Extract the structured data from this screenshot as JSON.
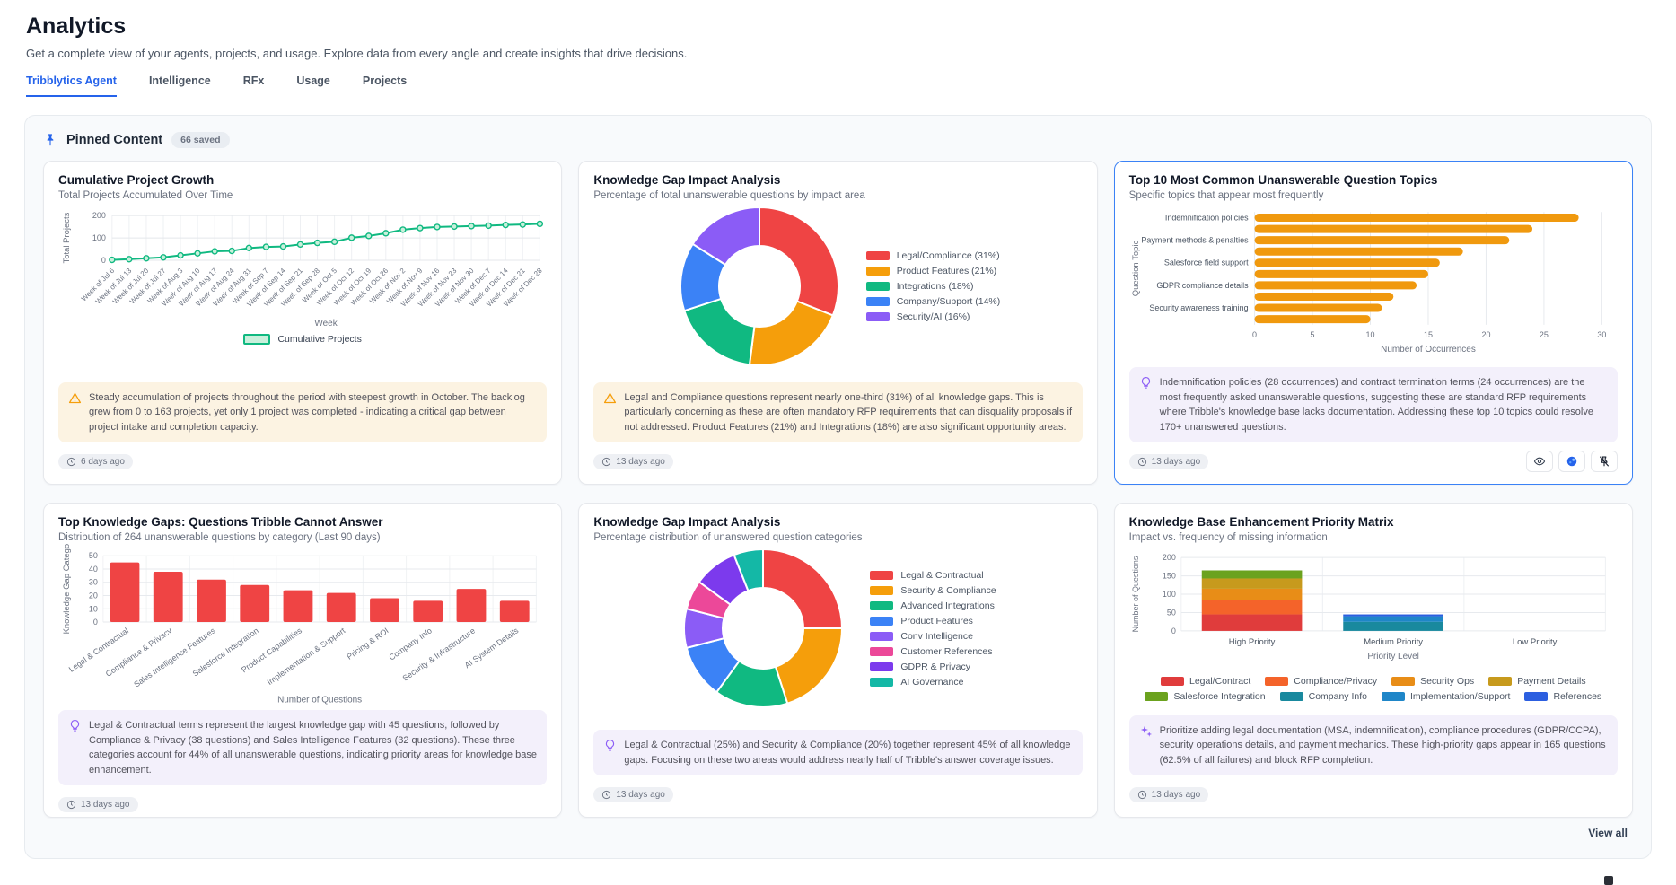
{
  "page": {
    "title": "Analytics",
    "subtitle": "Get a complete view of your agents, projects, and usage. Explore data from every angle and create insights that drive decisions.",
    "tabs": [
      {
        "label": "Tribblytics Agent",
        "active": true
      },
      {
        "label": "Intelligence",
        "active": false
      },
      {
        "label": "RFx",
        "active": false
      },
      {
        "label": "Usage",
        "active": false
      },
      {
        "label": "Projects",
        "active": false
      }
    ]
  },
  "section": {
    "title": "Pinned Content",
    "badge": "66 saved",
    "view_all": "View all"
  },
  "cards": [
    {
      "title": "Cumulative Project Growth",
      "subtitle": "Total Projects Accumulated Over Time",
      "insight": "Steady accumulation of projects throughout the period with steepest growth in October. The backlog grew from 0 to 163 projects, yet only 1 project was completed - indicating a critical gap between project intake and completion capacity.",
      "insight_type": "warning",
      "timestamp": "6 days ago"
    },
    {
      "title": "Knowledge Gap Impact Analysis",
      "subtitle": "Percentage of total unanswerable questions by impact area",
      "insight": "Legal and Compliance questions represent nearly one-third (31%) of all knowledge gaps. This is particularly concerning as these are often mandatory RFP requirements that can disqualify proposals if not addressed. Product Features (21%) and Integrations (18%) are also significant opportunity areas.",
      "insight_type": "warning",
      "timestamp": "13 days ago"
    },
    {
      "title": "Top 10 Most Common Unanswerable Question Topics",
      "subtitle": "Specific topics that appear most frequently",
      "insight": "Indemnification policies (28 occurrences) and contract termination terms (24 occurrences) are the most frequently asked unanswerable questions, suggesting these are standard RFP requirements where Tribble's knowledge base lacks documentation. Addressing these top 10 topics could resolve 170+ unanswered questions.",
      "insight_type": "lightbulb",
      "timestamp": "13 days ago",
      "actions": [
        "eye",
        "palette",
        "unpin"
      ]
    },
    {
      "title": "Top Knowledge Gaps: Questions Tribble Cannot Answer",
      "subtitle": "Distribution of 264 unanswerable questions by category (Last 90 days)",
      "insight": "Legal & Contractual terms represent the largest knowledge gap with 45 questions, followed by Compliance & Privacy (38 questions) and Sales Intelligence Features (32 questions). These three categories account for 44% of all unanswerable questions, indicating priority areas for knowledge base enhancement.",
      "insight_type": "lightbulb",
      "timestamp": "13 days ago"
    },
    {
      "title": "Knowledge Gap Impact Analysis",
      "subtitle": "Percentage distribution of unanswered question categories",
      "insight": "Legal & Contractual (25%) and Security & Compliance (20%) together represent 45% of all knowledge gaps. Focusing on these two areas would address nearly half of Tribble's answer coverage issues.",
      "insight_type": "lightbulb",
      "timestamp": "13 days ago"
    },
    {
      "title": "Knowledge Base Enhancement Priority Matrix",
      "subtitle": "Impact vs. frequency of missing information",
      "insight": "Prioritize adding legal documentation (MSA, indemnification), compliance procedures (GDPR/CCPA), security operations details, and payment mechanics. These high-priority gaps appear in 165 questions (62.5% of all failures) and block RFP completion.",
      "insight_type": "sparkles",
      "timestamp": "13 days ago"
    }
  ],
  "chart_data": [
    {
      "type": "line",
      "title": "Cumulative Project Growth",
      "x": [
        "Week of Jul 6",
        "Week of Jul 13",
        "Week of Jul 20",
        "Week of Jul 27",
        "Week of Aug 3",
        "Week of Aug 10",
        "Week of Aug 17",
        "Week of Aug 24",
        "Week of Aug 31",
        "Week of Sep 7",
        "Week of Sep 14",
        "Week of Sep 21",
        "Week of Sep 28",
        "Week of Oct 5",
        "Week of Oct 12",
        "Week of Oct 19",
        "Week of Oct 26",
        "Week of Nov 2",
        "Week of Nov 9",
        "Week of Nov 16",
        "Week of Nov 23",
        "Week of Nov 30",
        "Week of Dec 7",
        "Week of Dec 14",
        "Week of Dec 21",
        "Week of Dec 28"
      ],
      "values": [
        2,
        5,
        9,
        13,
        22,
        31,
        40,
        42,
        55,
        60,
        62,
        71,
        78,
        83,
        101,
        109,
        121,
        137,
        144,
        149,
        151,
        153,
        155,
        158,
        160,
        163
      ],
      "series_name": "Cumulative Projects",
      "color": "#10b981",
      "marker_fill": "#c9f0dc",
      "xlabel": "Week",
      "ylabel": "Total Projects",
      "ylim": [
        0,
        200
      ],
      "yticks": [
        0,
        100,
        200
      ],
      "legend_position": "bottom",
      "grid": true
    },
    {
      "type": "pie",
      "donut": true,
      "title": "Knowledge Gap Impact Analysis",
      "labels": [
        "Legal/Compliance (31%)",
        "Product Features (21%)",
        "Integrations (18%)",
        "Company/Support (14%)",
        "Security/AI (16%)"
      ],
      "values": [
        31,
        21,
        18,
        14,
        16
      ],
      "colors": [
        "#ef4444",
        "#f59e0b",
        "#10b981",
        "#3b82f6",
        "#8b5cf6"
      ],
      "legend_position": "right"
    },
    {
      "type": "bar",
      "orientation": "horizontal",
      "title": "Top 10 Most Common Unanswerable Question Topics",
      "categories": [
        "Indemnification policies",
        "",
        "Payment methods & penalties",
        "",
        "Salesforce field support",
        "",
        "GDPR compliance details",
        "",
        "Security awareness training",
        ""
      ],
      "values": [
        28,
        24,
        22,
        18,
        16,
        15,
        14,
        12,
        11,
        10
      ],
      "color": "#f0990e",
      "xlabel": "Number of Occurrences",
      "ylabel": "Question Topic",
      "xlim": [
        0,
        30
      ],
      "xticks": [
        0,
        5,
        10,
        15,
        20,
        25,
        30
      ],
      "grid": true
    },
    {
      "type": "bar",
      "title": "Top Knowledge Gaps: Questions Tribble Cannot Answer",
      "categories": [
        "Legal & Contractual",
        "Compliance & Privacy",
        "Sales Intelligence Features",
        "Salesforce Integration",
        "Product Capabilities",
        "Implementation & Support",
        "Pricing & ROI",
        "Company Info",
        "Security & Infrastructure",
        "AI System Details"
      ],
      "values": [
        45,
        38,
        32,
        28,
        24,
        22,
        18,
        16,
        25,
        16
      ],
      "color": "#ef4444",
      "xlabel": "Number of Questions",
      "ylabel": "Knowledge Gap Catego",
      "ylim": [
        0,
        50
      ],
      "yticks": [
        0,
        10,
        20,
        30,
        40,
        50
      ],
      "grid": true
    },
    {
      "type": "pie",
      "donut": true,
      "title": "Knowledge Gap Impact Analysis",
      "labels": [
        "Legal & Contractual",
        "Security & Compliance",
        "Advanced Integrations",
        "Product Features",
        "Conv Intelligence",
        "Customer References",
        "GDPR & Privacy",
        "AI Governance"
      ],
      "values": [
        25,
        20,
        15,
        11,
        8,
        6,
        9,
        6
      ],
      "colors": [
        "#ef4444",
        "#f59e0b",
        "#10b981",
        "#3b82f6",
        "#8b5cf6",
        "#ec4899",
        "#7c3aed",
        "#14b8a6"
      ],
      "legend_position": "right"
    },
    {
      "type": "stacked_bar",
      "title": "Knowledge Base Enhancement Priority Matrix",
      "categories": [
        "High Priority",
        "Medium Priority",
        "Low Priority"
      ],
      "series": [
        {
          "name": "Legal/Contract",
          "color": "#e03c3c",
          "values": [
            45,
            0,
            0
          ]
        },
        {
          "name": "Compliance/Privacy",
          "color": "#f4632a",
          "values": [
            40,
            0,
            0
          ]
        },
        {
          "name": "Security Ops",
          "color": "#e88d17",
          "values": [
            30,
            0,
            0
          ]
        },
        {
          "name": "Payment Details",
          "color": "#c79a1d",
          "values": [
            28,
            0,
            0
          ]
        },
        {
          "name": "Salesforce Integration",
          "color": "#6ba21e",
          "values": [
            22,
            0,
            0
          ]
        },
        {
          "name": "Company Info",
          "color": "#19899e",
          "values": [
            0,
            25,
            0
          ]
        },
        {
          "name": "Implementation/Support",
          "color": "#1f86c8",
          "values": [
            0,
            15,
            0
          ]
        },
        {
          "name": "References",
          "color": "#2c5fe0",
          "values": [
            0,
            5,
            0
          ]
        }
      ],
      "xlabel": "Priority Level",
      "ylabel": "Number of Questions",
      "ylim": [
        0,
        200
      ],
      "yticks": [
        0,
        50,
        100,
        150,
        200
      ],
      "legend_position": "bottom",
      "grid": true
    }
  ]
}
